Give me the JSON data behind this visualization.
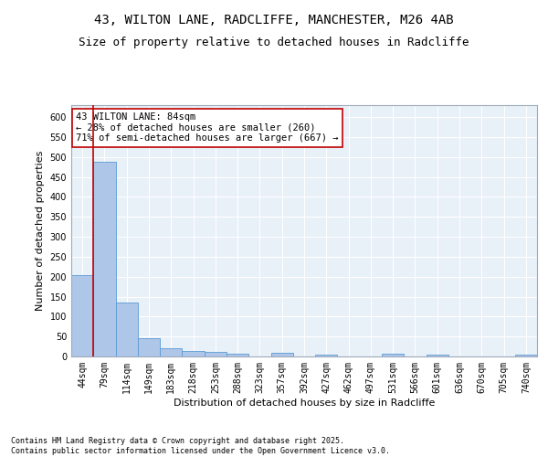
{
  "title1": "43, WILTON LANE, RADCLIFFE, MANCHESTER, M26 4AB",
  "title2": "Size of property relative to detached houses in Radcliffe",
  "xlabel": "Distribution of detached houses by size in Radcliffe",
  "ylabel": "Number of detached properties",
  "categories": [
    "44sqm",
    "79sqm",
    "114sqm",
    "149sqm",
    "183sqm",
    "218sqm",
    "253sqm",
    "288sqm",
    "323sqm",
    "357sqm",
    "392sqm",
    "427sqm",
    "462sqm",
    "497sqm",
    "531sqm",
    "566sqm",
    "601sqm",
    "636sqm",
    "670sqm",
    "705sqm",
    "740sqm"
  ],
  "values": [
    203,
    488,
    135,
    45,
    21,
    13,
    11,
    6,
    0,
    9,
    0,
    5,
    0,
    0,
    6,
    0,
    5,
    0,
    0,
    0,
    4
  ],
  "bar_color": "#aec6e8",
  "bar_edge_color": "#5b9bd5",
  "highlight_color": "#c00000",
  "property_line_index": 1,
  "annotation_text": "43 WILTON LANE: 84sqm\n← 28% of detached houses are smaller (260)\n71% of semi-detached houses are larger (667) →",
  "ylim": [
    0,
    630
  ],
  "yticks": [
    0,
    50,
    100,
    150,
    200,
    250,
    300,
    350,
    400,
    450,
    500,
    550,
    600
  ],
  "background_color": "#e8f0f8",
  "footer_text": "Contains HM Land Registry data © Crown copyright and database right 2025.\nContains public sector information licensed under the Open Government Licence v3.0.",
  "title1_fontsize": 10,
  "title2_fontsize": 9,
  "axis_label_fontsize": 8,
  "tick_fontsize": 7,
  "annotation_fontsize": 7.5,
  "footer_fontsize": 6
}
